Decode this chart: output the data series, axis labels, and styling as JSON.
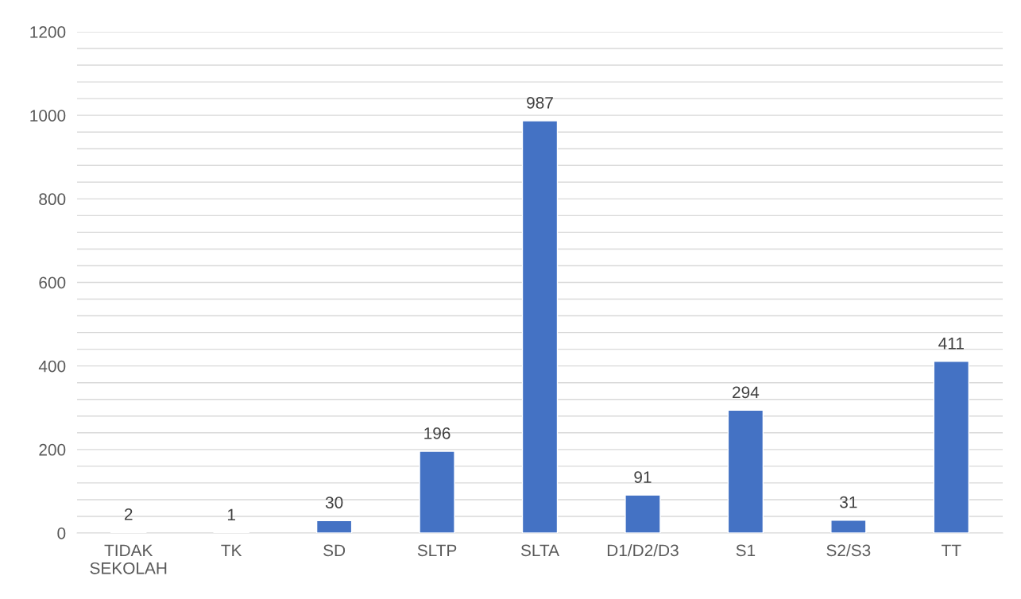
{
  "chart_data": {
    "type": "bar",
    "categories": [
      "TIDAK\nSEKOLAH",
      "TK",
      "SD",
      "SLTP",
      "SLTA",
      "D1/D2/D3",
      "S1",
      "S2/S3",
      "TT"
    ],
    "values": [
      2,
      1,
      30,
      196,
      987,
      91,
      294,
      31,
      411
    ],
    "color": "#4472c4",
    "ylim": [
      0,
      1200
    ],
    "yticks": [
      0,
      {
        "value": 40,
        "label": null
      },
      {
        "value": 80,
        "label": null
      },
      {
        "value": 120,
        "label": null
      },
      {
        "value": 160,
        "label": null
      },
      200,
      {
        "value": 240,
        "label": null
      },
      {
        "value": 280,
        "label": null
      },
      {
        "value": 320,
        "label": null
      },
      {
        "value": 360,
        "label": null
      },
      400,
      {
        "value": 440,
        "label": null
      },
      {
        "value": 480,
        "label": null
      },
      {
        "value": 520,
        "label": null
      },
      {
        "value": 560,
        "label": null
      },
      600,
      {
        "value": 640,
        "label": null
      },
      {
        "value": 680,
        "label": null
      },
      {
        "value": 720,
        "label": null
      },
      {
        "value": 760,
        "label": null
      },
      800,
      {
        "value": 840,
        "label": null
      },
      {
        "value": 880,
        "label": null
      },
      {
        "value": 920,
        "label": null
      },
      {
        "value": 960,
        "label": null
      },
      1000,
      {
        "value": 1040,
        "label": null
      },
      {
        "value": 1080,
        "label": null
      },
      {
        "value": 1120,
        "label": null
      },
      {
        "value": 1160,
        "label": null
      },
      1200
    ],
    "grid": "y",
    "data_labels": true
  }
}
